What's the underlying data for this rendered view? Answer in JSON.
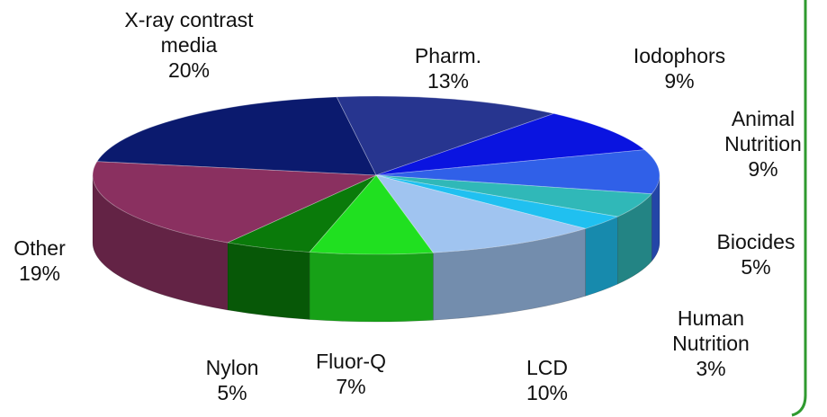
{
  "chart_data": {
    "type": "pie",
    "categories": [
      "X-ray contrast media",
      "Pharm.",
      "Iodophors",
      "Animal Nutrition",
      "Biocides",
      "Human Nutrition",
      "LCD",
      "Fluor-Q",
      "Nylon",
      "Other"
    ],
    "values": [
      20,
      13,
      9,
      9,
      5,
      3,
      10,
      7,
      5,
      19
    ],
    "value_labels": [
      "20%",
      "13%",
      "9%",
      "9%",
      "5%",
      "3%",
      "10%",
      "7%",
      "5%",
      "19%"
    ],
    "colors": [
      "#0b1a6e",
      "#27358f",
      "#0a14e0",
      "#3060e8",
      "#30b8b8",
      "#20c0f0",
      "#a0c4f0",
      "#20e020",
      "#0a7a0a",
      "#8a3060"
    ]
  }
}
